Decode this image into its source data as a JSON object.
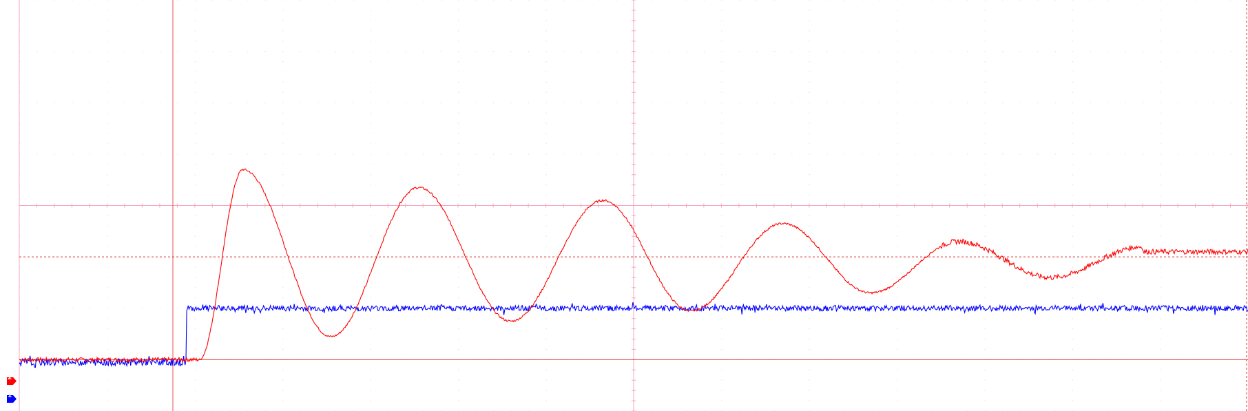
{
  "chart_data": {
    "type": "line",
    "title": "",
    "xlabel": "",
    "ylabel": "",
    "grid": true,
    "legend": "none",
    "x_range": [
      0,
      14
    ],
    "y_range": [
      -1,
      7
    ],
    "divisions": {
      "x": 14,
      "y": 8
    },
    "cursors": {
      "trigger_x": 1.75,
      "ref_level": 2.0
    },
    "series": [
      {
        "channel": "2",
        "color": "#ff0000",
        "initial": 0,
        "final": 2.0,
        "step_time": 2.05,
        "overshoot_points": [
          [
            2.55,
            3.7
          ],
          [
            3.55,
            0.45
          ],
          [
            4.55,
            3.35
          ],
          [
            5.6,
            0.75
          ],
          [
            6.65,
            3.1
          ],
          [
            7.65,
            0.95
          ],
          [
            8.7,
            2.65
          ],
          [
            9.7,
            1.3
          ],
          [
            10.7,
            2.3
          ],
          [
            11.75,
            1.6
          ],
          [
            12.8,
            2.2
          ]
        ]
      },
      {
        "channel": "1",
        "color": "#0000ff",
        "initial": -0.05,
        "final": 1.0,
        "step_time": 1.9
      }
    ]
  },
  "markers": [
    {
      "label": "2",
      "color": "#ff0000"
    },
    {
      "label": "1",
      "color": "#0000ff"
    }
  ]
}
